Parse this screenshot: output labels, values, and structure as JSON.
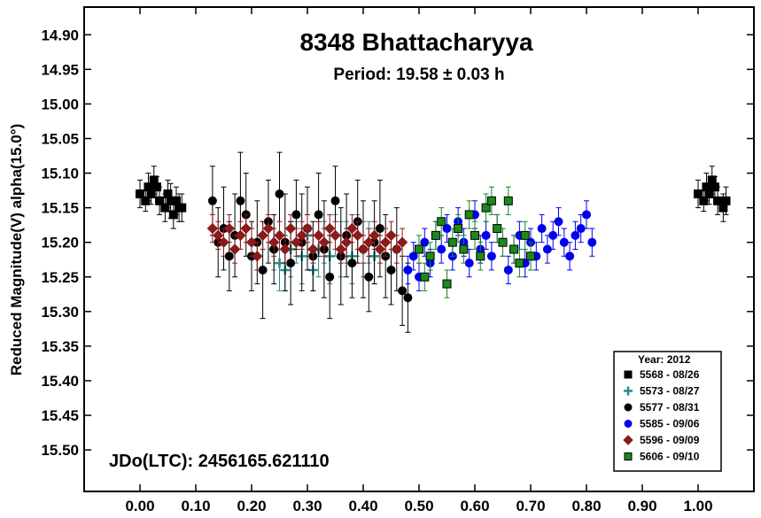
{
  "chart_data": {
    "type": "scatter",
    "title": "8348 Bhattacharyya",
    "subtitle": "Period: 19.58 ± 0.03 h",
    "xlabel": "",
    "ylabel": "Reduced Magnitude(V) alpha(15.0°)",
    "annotation": "JDo(LTC): 2456165.621110",
    "xlim": [
      -0.1,
      1.1
    ],
    "ylim": [
      14.86,
      15.56
    ],
    "y_inverted": true,
    "grid": false,
    "x_ticks": [
      0.0,
      0.1,
      0.2,
      0.3,
      0.4,
      0.5,
      0.6,
      0.7,
      0.8,
      0.9,
      1.0
    ],
    "x_tick_labels": [
      "0.00",
      "0.10",
      "0.20",
      "0.30",
      "0.40",
      "0.50",
      "0.60",
      "0.70",
      "0.80",
      "0.90",
      "1.00"
    ],
    "y_ticks": [
      14.9,
      14.95,
      15.0,
      15.05,
      15.1,
      15.15,
      15.2,
      15.25,
      15.3,
      15.35,
      15.4,
      15.45,
      15.5
    ],
    "y_tick_labels": [
      "14.90",
      "14.95",
      "15.00",
      "15.05",
      "15.10",
      "15.15",
      "15.20",
      "15.25",
      "15.30",
      "15.35",
      "15.40",
      "15.45",
      "15.50"
    ],
    "legend": {
      "title": "Year: 2012",
      "placement": "bottom-right",
      "entries": [
        "5568 - 08/26",
        "5573 - 08/27",
        "5577 - 08/31",
        "5585 - 09/06",
        "5596 - 09/09",
        "5606 - 09/10"
      ]
    },
    "series": [
      {
        "name": "5568 - 08/26",
        "marker": "square",
        "color": "#000000",
        "x": [
          0.0,
          0.01,
          0.015,
          0.02,
          0.025,
          0.03,
          0.035,
          0.045,
          0.05,
          0.055,
          0.06,
          0.065,
          0.07,
          0.075,
          1.0,
          1.01,
          1.015,
          1.02,
          1.025,
          1.03,
          1.035,
          1.045,
          1.05
        ],
        "y": [
          15.13,
          15.14,
          15.12,
          15.13,
          15.11,
          15.12,
          15.14,
          15.15,
          15.13,
          15.14,
          15.16,
          15.14,
          15.15,
          15.15,
          15.13,
          15.14,
          15.12,
          15.13,
          15.11,
          15.12,
          15.14,
          15.15,
          15.14
        ],
        "err": [
          0.02,
          0.015,
          0.02,
          0.015,
          0.02,
          0.015,
          0.02,
          0.02,
          0.02,
          0.025,
          0.02,
          0.02,
          0.02,
          0.02,
          0.02,
          0.015,
          0.02,
          0.015,
          0.02,
          0.015,
          0.02,
          0.02,
          0.02
        ]
      },
      {
        "name": "5573 - 08/27",
        "marker": "plus",
        "color": "#2a8a8a",
        "x": [
          0.24,
          0.25,
          0.26,
          0.27,
          0.28,
          0.29,
          0.3,
          0.31,
          0.32,
          0.33,
          0.34,
          0.35,
          0.36,
          0.37,
          0.38,
          0.39,
          0.4,
          0.41,
          0.42
        ],
        "y": [
          15.21,
          15.23,
          15.24,
          15.21,
          15.2,
          15.22,
          15.19,
          15.24,
          15.21,
          15.2,
          15.22,
          15.19,
          15.21,
          15.2,
          15.22,
          15.19,
          15.21,
          15.2,
          15.22
        ],
        "err": [
          0.03,
          0.04,
          0.03,
          0.04,
          0.03,
          0.04,
          0.03,
          0.03,
          0.04,
          0.03,
          0.04,
          0.03,
          0.04,
          0.03,
          0.04,
          0.03,
          0.04,
          0.03,
          0.04
        ]
      },
      {
        "name": "5577 - 08/31",
        "marker": "circle",
        "color": "#000000",
        "x": [
          0.13,
          0.14,
          0.15,
          0.16,
          0.17,
          0.18,
          0.19,
          0.2,
          0.21,
          0.22,
          0.23,
          0.24,
          0.25,
          0.26,
          0.27,
          0.28,
          0.29,
          0.3,
          0.31,
          0.32,
          0.33,
          0.34,
          0.35,
          0.36,
          0.37,
          0.38,
          0.39,
          0.4,
          0.41,
          0.42,
          0.43,
          0.44,
          0.45,
          0.46,
          0.47,
          0.48
        ],
        "y": [
          15.14,
          15.2,
          15.18,
          15.22,
          15.19,
          15.14,
          15.16,
          15.22,
          15.2,
          15.24,
          15.17,
          15.21,
          15.13,
          15.2,
          15.23,
          15.16,
          15.2,
          15.18,
          15.22,
          15.16,
          15.21,
          15.25,
          15.14,
          15.22,
          15.19,
          15.23,
          15.17,
          15.21,
          15.25,
          15.2,
          15.18,
          15.22,
          15.24,
          15.21,
          15.27,
          15.28
        ],
        "err": [
          0.05,
          0.05,
          0.06,
          0.05,
          0.06,
          0.07,
          0.06,
          0.05,
          0.06,
          0.07,
          0.06,
          0.05,
          0.06,
          0.07,
          0.06,
          0.05,
          0.07,
          0.06,
          0.05,
          0.06,
          0.07,
          0.06,
          0.05,
          0.07,
          0.06,
          0.05,
          0.06,
          0.07,
          0.05,
          0.06,
          0.07,
          0.06,
          0.05,
          0.06,
          0.05,
          0.05
        ]
      },
      {
        "name": "5585 - 09/06",
        "marker": "circle",
        "color": "#0000ee",
        "x": [
          0.48,
          0.49,
          0.5,
          0.51,
          0.52,
          0.53,
          0.54,
          0.55,
          0.56,
          0.57,
          0.58,
          0.59,
          0.6,
          0.61,
          0.62,
          0.63,
          0.64,
          0.65,
          0.66,
          0.67,
          0.68,
          0.69,
          0.7,
          0.71,
          0.72,
          0.73,
          0.74,
          0.75,
          0.76,
          0.77,
          0.78,
          0.79,
          0.8,
          0.81
        ],
        "y": [
          15.24,
          15.22,
          15.25,
          15.2,
          15.23,
          15.19,
          15.21,
          15.18,
          15.22,
          15.17,
          15.2,
          15.23,
          15.16,
          15.21,
          15.19,
          15.22,
          15.18,
          15.2,
          15.24,
          15.21,
          15.19,
          15.23,
          15.2,
          15.22,
          15.18,
          15.21,
          15.19,
          15.17,
          15.2,
          15.22,
          15.19,
          15.18,
          15.16,
          15.2
        ],
        "err": [
          0.02,
          0.02,
          0.02,
          0.02,
          0.02,
          0.02,
          0.02,
          0.02,
          0.02,
          0.02,
          0.02,
          0.02,
          0.02,
          0.02,
          0.02,
          0.02,
          0.02,
          0.02,
          0.02,
          0.02,
          0.02,
          0.02,
          0.02,
          0.02,
          0.02,
          0.02,
          0.02,
          0.02,
          0.02,
          0.02,
          0.02,
          0.02,
          0.02,
          0.02
        ]
      },
      {
        "name": "5596 - 09/09",
        "marker": "diamond",
        "color": "#8b1a1a",
        "x": [
          0.13,
          0.14,
          0.15,
          0.16,
          0.17,
          0.18,
          0.19,
          0.2,
          0.21,
          0.22,
          0.23,
          0.24,
          0.25,
          0.26,
          0.27,
          0.28,
          0.29,
          0.3,
          0.31,
          0.32,
          0.33,
          0.34,
          0.35,
          0.36,
          0.37,
          0.38,
          0.39,
          0.4,
          0.41,
          0.42,
          0.43,
          0.44,
          0.45,
          0.46,
          0.47
        ],
        "y": [
          15.18,
          15.19,
          15.2,
          15.18,
          15.21,
          15.19,
          15.18,
          15.2,
          15.22,
          15.19,
          15.18,
          15.2,
          15.19,
          15.21,
          15.18,
          15.2,
          15.19,
          15.18,
          15.21,
          15.19,
          15.2,
          15.18,
          15.19,
          15.21,
          15.2,
          15.18,
          15.19,
          15.21,
          15.2,
          15.19,
          15.21,
          15.2,
          15.19,
          15.21,
          15.2
        ],
        "err": [
          0.02,
          0.02,
          0.02,
          0.02,
          0.02,
          0.02,
          0.02,
          0.02,
          0.02,
          0.02,
          0.02,
          0.02,
          0.02,
          0.02,
          0.02,
          0.02,
          0.02,
          0.02,
          0.02,
          0.02,
          0.02,
          0.02,
          0.02,
          0.02,
          0.02,
          0.02,
          0.02,
          0.02,
          0.02,
          0.02,
          0.02,
          0.02,
          0.02,
          0.02,
          0.02
        ]
      },
      {
        "name": "5606 - 09/10",
        "marker": "square",
        "color": "#1a8a1a",
        "x": [
          0.5,
          0.51,
          0.52,
          0.53,
          0.54,
          0.55,
          0.56,
          0.57,
          0.58,
          0.59,
          0.6,
          0.61,
          0.62,
          0.63,
          0.64,
          0.65,
          0.66,
          0.67,
          0.68,
          0.69,
          0.7
        ],
        "y": [
          15.21,
          15.25,
          15.22,
          15.19,
          15.17,
          15.26,
          15.2,
          15.18,
          15.21,
          15.16,
          15.19,
          15.22,
          15.15,
          15.14,
          15.18,
          15.2,
          15.14,
          15.21,
          15.23,
          15.19,
          15.22
        ],
        "err": [
          0.02,
          0.02,
          0.02,
          0.02,
          0.02,
          0.02,
          0.02,
          0.02,
          0.02,
          0.02,
          0.02,
          0.02,
          0.02,
          0.02,
          0.02,
          0.02,
          0.02,
          0.02,
          0.02,
          0.02,
          0.02
        ]
      }
    ]
  }
}
